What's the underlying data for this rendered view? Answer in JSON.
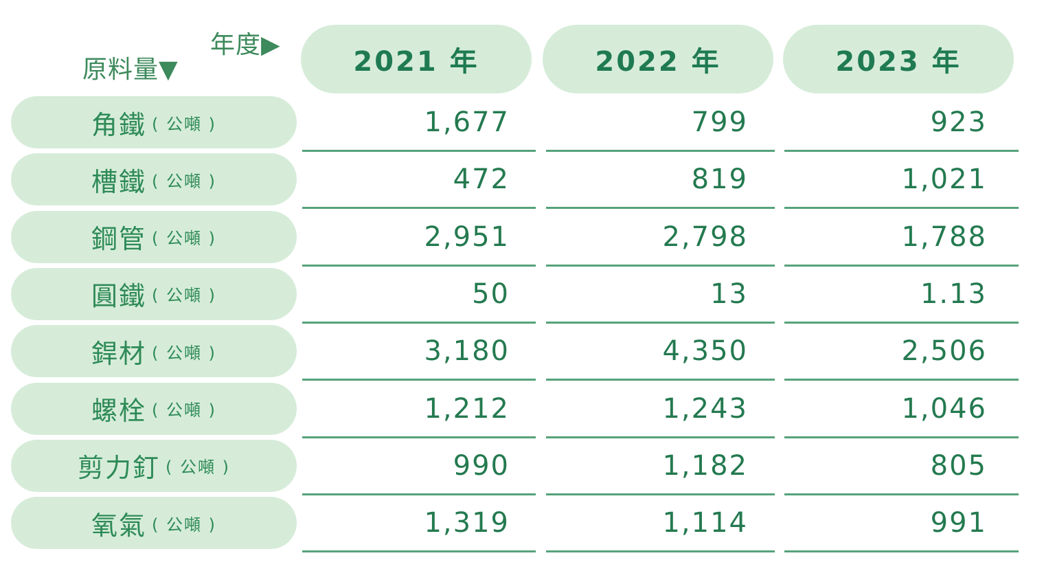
{
  "corner": {
    "year_label": "年度▶",
    "material_label": "原料量▼"
  },
  "years": [
    "2021 年",
    "2022 年",
    "2023 年"
  ],
  "unit": "( 公噸 )",
  "rows": [
    {
      "name": "角鐵",
      "values": [
        "1,677",
        "799",
        "923"
      ]
    },
    {
      "name": "槽鐵",
      "values": [
        "472",
        "819",
        "1,021"
      ]
    },
    {
      "name": "鋼管",
      "values": [
        "2,951",
        "2,798",
        "1,788"
      ]
    },
    {
      "name": "圓鐵",
      "values": [
        "50",
        "13",
        "1.13"
      ]
    },
    {
      "name": "銲材",
      "values": [
        "3,180",
        "4,350",
        "2,506"
      ]
    },
    {
      "name": "螺栓",
      "values": [
        "1,212",
        "1,243",
        "1,046"
      ]
    },
    {
      "name": "剪力釘",
      "values": [
        "990",
        "1,182",
        "805"
      ]
    },
    {
      "name": "氧氣",
      "values": [
        "1,319",
        "1,114",
        "991"
      ]
    }
  ]
}
